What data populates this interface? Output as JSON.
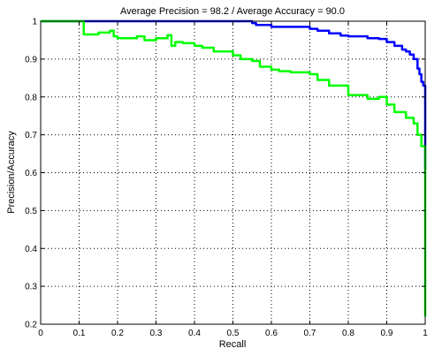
{
  "chart_data": {
    "type": "line",
    "title": "Average Precision = 98.2 / Average Accuracy = 90.0",
    "xlabel": "Recall",
    "ylabel": "Precision/Accuracy",
    "xlim": [
      0,
      1
    ],
    "ylim": [
      0.2,
      1
    ],
    "x_ticks": [
      "0",
      "0.1",
      "0.2",
      "0.3",
      "0.4",
      "0.5",
      "0.6",
      "0.7",
      "0.8",
      "0.9",
      "1"
    ],
    "y_ticks": [
      "0.2",
      "0.3",
      "0.4",
      "0.5",
      "0.6",
      "0.7",
      "0.8",
      "0.9",
      "1"
    ],
    "grid": true,
    "legend": "none",
    "series": [
      {
        "color": "#0000ff",
        "x": [
          0,
          0.1,
          0.2,
          0.3,
          0.4,
          0.5,
          0.55,
          0.56,
          0.6,
          0.65,
          0.7,
          0.72,
          0.75,
          0.78,
          0.8,
          0.85,
          0.88,
          0.9,
          0.92,
          0.94,
          0.95,
          0.96,
          0.97,
          0.98,
          0.985,
          0.99,
          0.995,
          1.0
        ],
        "y": [
          1.0,
          1.0,
          1.0,
          1.0,
          1.0,
          1.0,
          0.995,
          0.99,
          0.985,
          0.985,
          0.98,
          0.975,
          0.968,
          0.962,
          0.96,
          0.955,
          0.953,
          0.945,
          0.935,
          0.925,
          0.92,
          0.912,
          0.9,
          0.875,
          0.86,
          0.84,
          0.83,
          0.61
        ]
      },
      {
        "color": "#00ff00",
        "x": [
          0,
          0.11,
          0.112,
          0.15,
          0.18,
          0.19,
          0.2,
          0.25,
          0.27,
          0.3,
          0.33,
          0.34,
          0.35,
          0.37,
          0.4,
          0.42,
          0.45,
          0.5,
          0.52,
          0.55,
          0.57,
          0.6,
          0.62,
          0.65,
          0.7,
          0.72,
          0.75,
          0.8,
          0.85,
          0.88,
          0.9,
          0.92,
          0.95,
          0.97,
          0.98,
          0.99,
          1.0,
          1.0
        ],
        "y": [
          1.0,
          1.0,
          0.965,
          0.97,
          0.975,
          0.96,
          0.955,
          0.96,
          0.95,
          0.955,
          0.963,
          0.935,
          0.945,
          0.942,
          0.935,
          0.93,
          0.92,
          0.91,
          0.9,
          0.895,
          0.88,
          0.872,
          0.868,
          0.865,
          0.86,
          0.845,
          0.83,
          0.805,
          0.795,
          0.8,
          0.78,
          0.76,
          0.745,
          0.73,
          0.7,
          0.67,
          0.62,
          0.22
        ]
      }
    ]
  }
}
